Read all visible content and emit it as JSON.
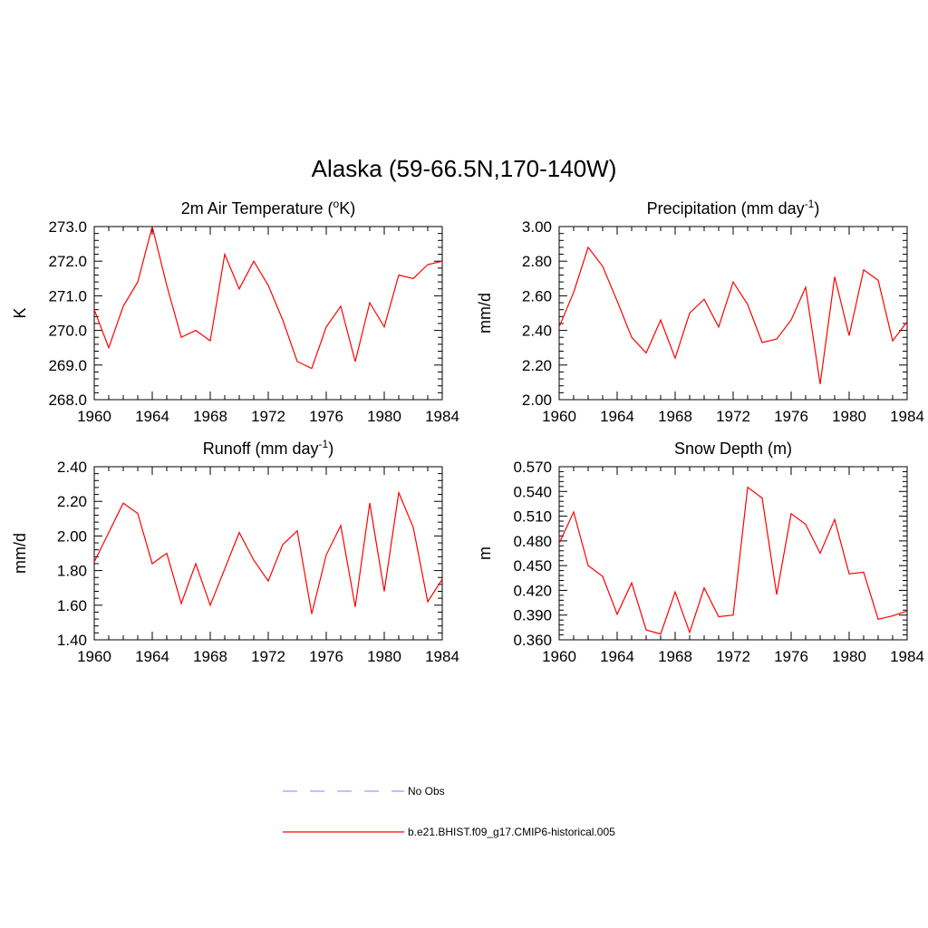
{
  "title": "Alaska (59-66.5N,170-140W)",
  "colors": {
    "series": "#ff0000",
    "obs": "#9999ff",
    "axis": "#000000",
    "background": "#ffffff"
  },
  "chart_data": [
    {
      "type": "line",
      "title": "2m Air Temperature (oK)",
      "title_parts": {
        "main": "2m Air Temperature (",
        "sup": "o",
        "post": "K)"
      },
      "ylabel": "K",
      "xlim": [
        1960,
        1984
      ],
      "ylim": [
        268.0,
        273.0
      ],
      "x_ticks": [
        "1960",
        "1964",
        "1968",
        "1972",
        "1976",
        "1980",
        "1984"
      ],
      "y_ticks": [
        "268.0",
        "269.0",
        "270.0",
        "271.0",
        "272.0",
        "273.0"
      ],
      "x": [
        1960,
        1961,
        1962,
        1963,
        1964,
        1965,
        1966,
        1967,
        1968,
        1969,
        1970,
        1971,
        1972,
        1973,
        1974,
        1975,
        1976,
        1977,
        1978,
        1979,
        1980,
        1981,
        1982,
        1983,
        1984
      ],
      "series": [
        {
          "name": "b.e21.BHIST.f09_g17.CMIP6-historical.005",
          "values": [
            270.6,
            269.5,
            270.7,
            271.4,
            273.0,
            271.3,
            269.8,
            270.0,
            269.7,
            272.2,
            271.2,
            272.0,
            271.3,
            270.3,
            269.1,
            268.9,
            270.1,
            270.7,
            269.1,
            270.8,
            270.1,
            271.6,
            271.5,
            271.9,
            272.0
          ]
        }
      ]
    },
    {
      "type": "line",
      "title": "Precipitation (mm day-1)",
      "title_parts": {
        "main": "Precipitation (mm day",
        "sup": "-1",
        "post": ")"
      },
      "ylabel": "mm/d",
      "xlim": [
        1960,
        1984
      ],
      "ylim": [
        2.0,
        3.0
      ],
      "x_ticks": [
        "1960",
        "1964",
        "1968",
        "1972",
        "1976",
        "1980",
        "1984"
      ],
      "y_ticks": [
        "2.00",
        "2.20",
        "2.40",
        "2.60",
        "2.80",
        "3.00"
      ],
      "x": [
        1960,
        1961,
        1962,
        1963,
        1964,
        1965,
        1966,
        1967,
        1968,
        1969,
        1970,
        1971,
        1972,
        1973,
        1974,
        1975,
        1976,
        1977,
        1978,
        1979,
        1980,
        1981,
        1982,
        1983,
        1984
      ],
      "series": [
        {
          "name": "b.e21.BHIST.f09_g17.CMIP6-historical.005",
          "values": [
            2.42,
            2.62,
            2.88,
            2.77,
            2.57,
            2.36,
            2.27,
            2.46,
            2.24,
            2.5,
            2.58,
            2.42,
            2.68,
            2.55,
            2.33,
            2.35,
            2.46,
            2.65,
            2.09,
            2.71,
            2.37,
            2.75,
            2.69,
            2.34,
            2.45
          ]
        }
      ]
    },
    {
      "type": "line",
      "title": "Runoff (mm day-1)",
      "title_parts": {
        "main": "Runoff (mm day",
        "sup": "-1",
        "post": ")"
      },
      "ylabel": "mm/d",
      "xlim": [
        1960,
        1984
      ],
      "ylim": [
        1.4,
        2.4
      ],
      "x_ticks": [
        "1960",
        "1964",
        "1968",
        "1972",
        "1976",
        "1980",
        "1984"
      ],
      "y_ticks": [
        "1.40",
        "1.60",
        "1.80",
        "2.00",
        "2.20",
        "2.40"
      ],
      "x": [
        1960,
        1961,
        1962,
        1963,
        1964,
        1965,
        1966,
        1967,
        1968,
        1969,
        1970,
        1971,
        1972,
        1973,
        1974,
        1975,
        1976,
        1977,
        1978,
        1979,
        1980,
        1981,
        1982,
        1983,
        1984
      ],
      "series": [
        {
          "name": "b.e21.BHIST.f09_g17.CMIP6-historical.005",
          "values": [
            1.85,
            2.02,
            2.19,
            2.13,
            1.84,
            1.9,
            1.61,
            1.84,
            1.6,
            1.81,
            2.02,
            1.86,
            1.74,
            1.95,
            2.03,
            1.55,
            1.89,
            2.06,
            1.59,
            2.19,
            1.68,
            2.25,
            2.05,
            1.62,
            1.75
          ]
        }
      ]
    },
    {
      "type": "line",
      "title": "Snow Depth (m)",
      "title_parts": {
        "main": "Snow Depth (m)",
        "sup": "",
        "post": ""
      },
      "ylabel": "m",
      "xlim": [
        1960,
        1984
      ],
      "ylim": [
        0.36,
        0.57
      ],
      "x_ticks": [
        "1960",
        "1964",
        "1968",
        "1972",
        "1976",
        "1980",
        "1984"
      ],
      "y_ticks": [
        "0.360",
        "0.390",
        "0.420",
        "0.450",
        "0.480",
        "0.510",
        "0.540",
        "0.570"
      ],
      "x": [
        1960,
        1961,
        1962,
        1963,
        1964,
        1965,
        1966,
        1967,
        1968,
        1969,
        1970,
        1971,
        1972,
        1973,
        1974,
        1975,
        1976,
        1977,
        1978,
        1979,
        1980,
        1981,
        1982,
        1983,
        1984
      ],
      "series": [
        {
          "name": "b.e21.BHIST.f09_g17.CMIP6-historical.005",
          "values": [
            0.477,
            0.515,
            0.45,
            0.437,
            0.391,
            0.429,
            0.372,
            0.367,
            0.418,
            0.369,
            0.423,
            0.388,
            0.39,
            0.545,
            0.532,
            0.415,
            0.513,
            0.5,
            0.465,
            0.506,
            0.44,
            0.442,
            0.385,
            0.389,
            0.395
          ]
        }
      ]
    }
  ],
  "legend": [
    {
      "label": "No Obs",
      "style": "dashed",
      "color": "#9999ff"
    },
    {
      "label": "b.e21.BHIST.f09_g17.CMIP6-historical.005",
      "style": "solid",
      "color": "#ff0000"
    }
  ]
}
